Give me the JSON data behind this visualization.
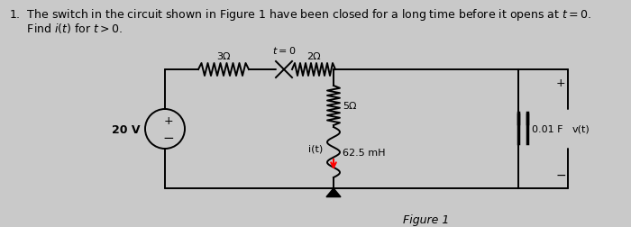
{
  "title_line1": "1.  The switch in the circuit shown in Figure 1 have been closed for a long time before it opens at $t = 0$.",
  "title_line2": "     Find $i(t)$ for $t > 0$.",
  "figure_label": "Figure 1",
  "background_color": "#c9c9c9",
  "circuit_color": "#000000",
  "resistor_3": "3Ω",
  "resistor_2": "2Ω",
  "resistor_5": "5Ω",
  "capacitor_label": "0.01 F",
  "inductor_label": "62.5 mH",
  "voltage_label": "20 V",
  "switch_label": "t = 0",
  "vt_label": "v(t)",
  "it_label": "i(t)",
  "plus": "+",
  "minus": "−",
  "figsize": [
    7.0,
    2.53
  ],
  "dpi": 100
}
